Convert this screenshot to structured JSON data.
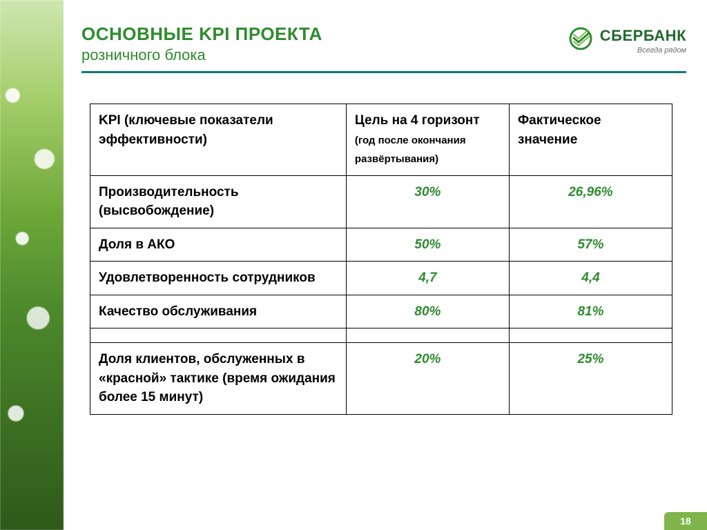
{
  "colors": {
    "brand_green": "#2e8b2e",
    "title_green": "#2e8b2e",
    "hr_teal": "#0a7a74",
    "value_green": "#2e8b2e",
    "page_badge": "#7fb54a",
    "text_dark": "#222222"
  },
  "header": {
    "title_main": "ОСНОВНЫЕ KPI ПРОЕКТА",
    "title_sub": "розничного блока"
  },
  "logo": {
    "name": "СБЕРБАНК",
    "tagline": "Всегда рядом"
  },
  "table": {
    "columns": [
      {
        "main": "KPI (ключевые показатели эффективности)",
        "sub": ""
      },
      {
        "main": "Цель на 4 горизонт",
        "sub": "(год после окончания развёртывания)"
      },
      {
        "main": "Фактическое значение",
        "sub": ""
      }
    ],
    "rows": [
      {
        "metric": "Производительность (высвобождение)",
        "target": "30%",
        "actual": "26,96%"
      },
      {
        "metric": "Доля в АКО",
        "target": "50%",
        "actual": "57%"
      },
      {
        "metric": "Удовлетворенность сотрудников",
        "target": "4,7",
        "actual": "4,4"
      },
      {
        "metric": "Качество обслуживания",
        "target": "80%",
        "actual": "81%"
      }
    ],
    "rows_after_gap": [
      {
        "metric": "Доля клиентов, обслуженных в «красной» тактике (время ожидания более 15 минут)",
        "target": "20%",
        "actual": "25%"
      }
    ]
  },
  "page_number": "18"
}
